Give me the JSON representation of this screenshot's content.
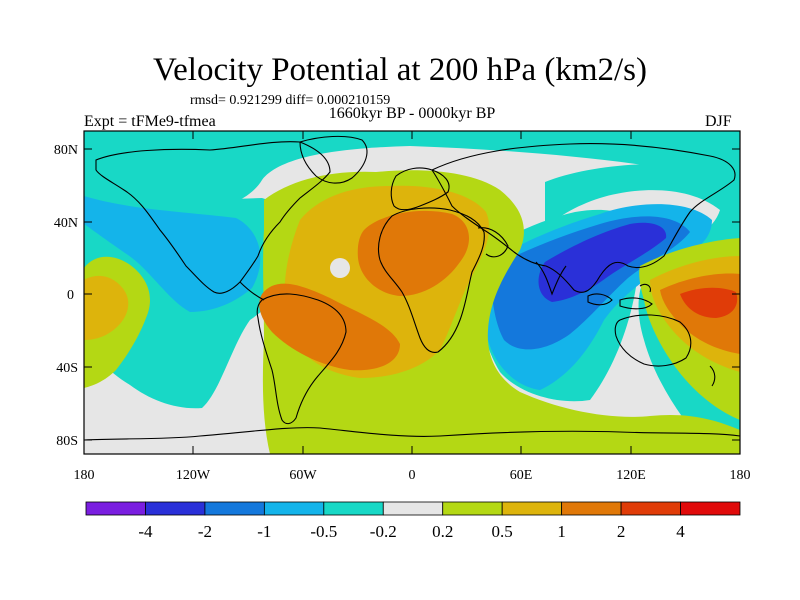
{
  "figure": {
    "title": "Velocity Potential at 200 hPa (km2/s)",
    "stats": "rmsd= 0.921299  diff= 0.000210159",
    "experiment": "Expt = tFMe9-tfmea",
    "period": "1660kyr BP - 0000kyr BP",
    "season": "DJF"
  },
  "axes": {
    "lat_ticks": [
      "80N",
      "40N",
      "0",
      "40S",
      "80S"
    ],
    "lon_ticks": [
      "180",
      "120W",
      "60W",
      "0",
      "60E",
      "120E",
      "180"
    ]
  },
  "colorbar": {
    "labels": [
      "-4",
      "-2",
      "-1",
      "-0.5",
      "-0.2",
      "0.2",
      "0.5",
      "1",
      "2",
      "4"
    ],
    "colors": [
      "#7a1ee0",
      "#2a30d8",
      "#1478dc",
      "#14b4ea",
      "#18d8c6",
      "#e6e6e6",
      "#b4d814",
      "#ddb40c",
      "#e07808",
      "#e03c08",
      "#e00a0a"
    ]
  },
  "colors": {
    "neutral": "#e6e6e6",
    "neg1": "#18d8c6",
    "neg2": "#14b4ea",
    "neg3": "#1478dc",
    "neg4": "#2a30d8",
    "pos1": "#b4d814",
    "pos2": "#ddb40c",
    "pos3": "#e07808",
    "pos4": "#e03c08"
  }
}
